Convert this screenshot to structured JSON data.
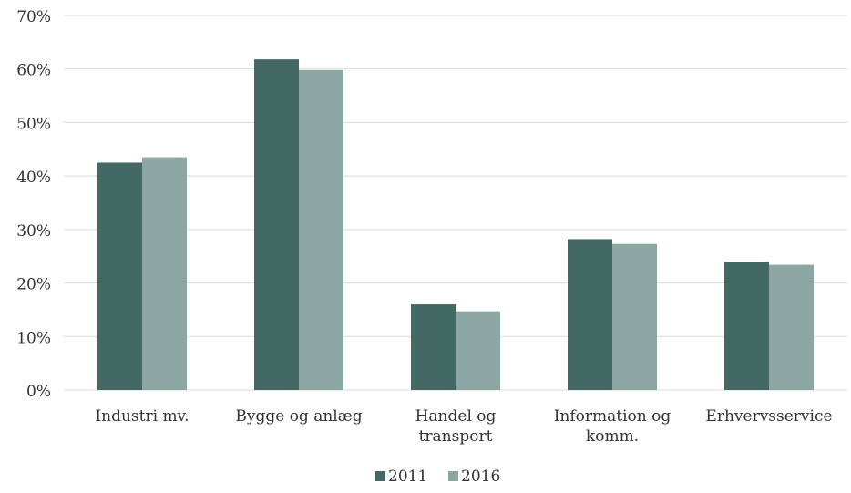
{
  "chart_data": {
    "type": "bar",
    "categories": [
      [
        "Industri mv."
      ],
      [
        "Bygge og anlæg"
      ],
      [
        "Handel og",
        "transport"
      ],
      [
        "Information og",
        "komm."
      ],
      [
        "Erhvervsservice"
      ]
    ],
    "series": [
      {
        "name": "2011",
        "color": "#436965",
        "values": [
          42.5,
          61.8,
          16.0,
          28.2,
          23.9
        ]
      },
      {
        "name": "2016",
        "color": "#8ca6a4",
        "values": [
          43.5,
          59.8,
          14.7,
          27.3,
          23.4
        ]
      }
    ],
    "yticks": [
      "0%",
      "10%",
      "20%",
      "30%",
      "40%",
      "50%",
      "60%",
      "70%"
    ],
    "ylim": [
      0,
      70
    ],
    "grid": true,
    "legend_position": "bottom-center"
  }
}
